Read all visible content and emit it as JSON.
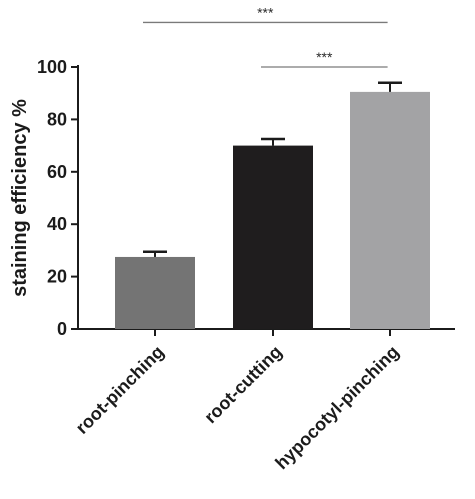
{
  "chart_data": {
    "type": "bar",
    "title": "",
    "xlabel": "",
    "ylabel": "staining efficiency %",
    "ylim": [
      0,
      100
    ],
    "yticks": [
      0,
      20,
      40,
      60,
      80,
      100
    ],
    "grid": false,
    "legend": "none",
    "categories": [
      "root-pinching",
      "root-cutting",
      "hypocotyl-pinching"
    ],
    "values": [
      27.5,
      70,
      90.5
    ],
    "errors": [
      2,
      2.5,
      3.5
    ],
    "bar_colors": [
      "#747474",
      "#1f1d1e",
      "#a3a3a5"
    ],
    "significance": [
      {
        "from": 0,
        "to": 2,
        "label": "***",
        "y": 117
      },
      {
        "from": 1,
        "to": 2,
        "label": "***",
        "y": 100
      }
    ]
  }
}
